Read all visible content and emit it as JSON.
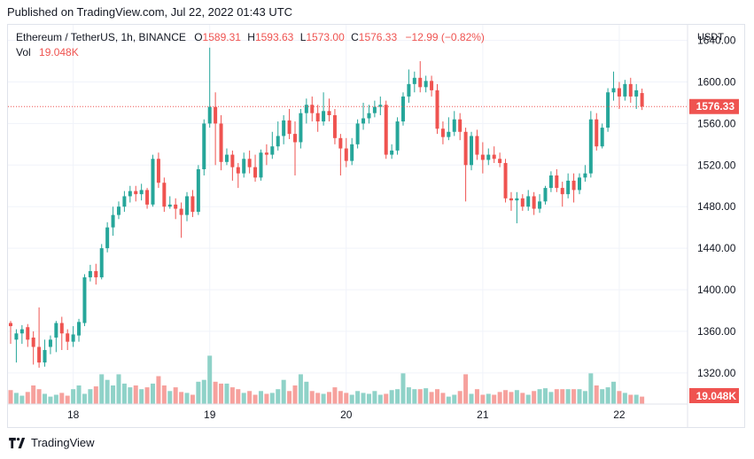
{
  "published": "Published on TradingView.com, Jul 22, 2022 01:43 UTC",
  "footer": {
    "brand": "TradingView",
    "icon": "tradingview-logo-icon"
  },
  "legend": {
    "symbol": "Ethereum / TetherUS, 1h, BINANCE",
    "o_label": "O",
    "o_value": "1589.31",
    "h_label": "H",
    "h_value": "1593.63",
    "l_label": "L",
    "l_value": "1573.00",
    "c_label": "C",
    "c_value": "1576.33",
    "change": "−12.99 (−0.82%)",
    "vol_label": "Vol",
    "vol_value": "19.048K"
  },
  "colors": {
    "up": "#26a69a",
    "down": "#ef5350",
    "vol_up": "#8fd2c8",
    "vol_down": "#f6a19d",
    "grid": "#f0f3fa",
    "axis_text": "#131722"
  },
  "chart_data": {
    "type": "candlestick",
    "currency": "USDT",
    "ylim": [
      1290,
      1655
    ],
    "y_ticks": [
      "1640.00",
      "1600.00",
      "1560.00",
      "1520.00",
      "1480.00",
      "1440.00",
      "1400.00",
      "1360.00",
      "1320.00"
    ],
    "x_ticks": [
      {
        "label": "18",
        "index": 11
      },
      {
        "label": "19",
        "index": 35
      },
      {
        "label": "20",
        "index": 59
      },
      {
        "label": "21",
        "index": 83
      },
      {
        "label": "22",
        "index": 107
      }
    ],
    "last_price": "1576.33",
    "last_volume": "19.048K",
    "grid": true,
    "candles": [
      [
        1368,
        1365,
        1370,
        1348,
        1.5
      ],
      [
        1352,
        1358,
        1362,
        1330,
        1.2
      ],
      [
        1358,
        1362,
        1366,
        1348,
        0.9
      ],
      [
        1364,
        1352,
        1367,
        1345,
        1.3
      ],
      [
        1354,
        1345,
        1360,
        1328,
        2.0
      ],
      [
        1345,
        1330,
        1383,
        1325,
        1.6
      ],
      [
        1330,
        1342,
        1352,
        1326,
        1.1
      ],
      [
        1345,
        1352,
        1356,
        1338,
        0.8
      ],
      [
        1354,
        1368,
        1370,
        1340,
        1.0
      ],
      [
        1368,
        1358,
        1374,
        1342,
        1.2
      ],
      [
        1358,
        1350,
        1362,
        1342,
        0.9
      ],
      [
        1350,
        1357,
        1365,
        1345,
        1.6
      ],
      [
        1356,
        1369,
        1372,
        1350,
        2.0
      ],
      [
        1368,
        1412,
        1415,
        1365,
        1.1
      ],
      [
        1412,
        1418,
        1424,
        1408,
        1.6
      ],
      [
        1418,
        1412,
        1425,
        1405,
        1.9
      ],
      [
        1412,
        1440,
        1444,
        1410,
        3.2
      ],
      [
        1440,
        1460,
        1465,
        1436,
        2.6
      ],
      [
        1460,
        1472,
        1480,
        1452,
        2.0
      ],
      [
        1472,
        1480,
        1485,
        1468,
        3.2
      ],
      [
        1480,
        1490,
        1495,
        1475,
        2.2
      ],
      [
        1490,
        1495,
        1500,
        1484,
        1.8
      ],
      [
        1495,
        1492,
        1500,
        1485,
        2.0
      ],
      [
        1492,
        1496,
        1502,
        1486,
        1.6
      ],
      [
        1496,
        1482,
        1498,
        1478,
        1.8
      ],
      [
        1482,
        1526,
        1530,
        1480,
        2.2
      ],
      [
        1526,
        1503,
        1532,
        1498,
        3.0
      ],
      [
        1503,
        1480,
        1508,
        1475,
        2.0
      ],
      [
        1480,
        1482,
        1490,
        1478,
        1.4
      ],
      [
        1482,
        1478,
        1488,
        1468,
        1.8
      ],
      [
        1478,
        1472,
        1484,
        1450,
        1.3
      ],
      [
        1472,
        1490,
        1494,
        1466,
        1.2
      ],
      [
        1490,
        1475,
        1496,
        1470,
        1.0
      ],
      [
        1475,
        1516,
        1520,
        1472,
        2.4
      ],
      [
        1516,
        1560,
        1564,
        1510,
        2.6
      ],
      [
        1560,
        1576,
        1633,
        1556,
        5.2
      ],
      [
        1576,
        1560,
        1590,
        1520,
        2.4
      ],
      [
        1560,
        1523,
        1568,
        1515,
        2.2
      ],
      [
        1523,
        1530,
        1536,
        1520,
        2.2
      ],
      [
        1530,
        1518,
        1534,
        1505,
        1.8
      ],
      [
        1518,
        1512,
        1522,
        1498,
        1.6
      ],
      [
        1512,
        1526,
        1532,
        1508,
        1.2
      ],
      [
        1526,
        1518,
        1534,
        1512,
        1.4
      ],
      [
        1518,
        1508,
        1530,
        1504,
        1.0
      ],
      [
        1508,
        1532,
        1535,
        1505,
        1.4
      ],
      [
        1532,
        1530,
        1540,
        1520,
        1.1
      ],
      [
        1530,
        1538,
        1552,
        1526,
        1.2
      ],
      [
        1538,
        1548,
        1562,
        1534,
        1.6
      ],
      [
        1548,
        1563,
        1568,
        1540,
        2.6
      ],
      [
        1563,
        1550,
        1574,
        1545,
        1.4
      ],
      [
        1550,
        1542,
        1562,
        1510,
        2.0
      ],
      [
        1542,
        1570,
        1574,
        1536,
        3.2
      ],
      [
        1570,
        1578,
        1584,
        1560,
        2.4
      ],
      [
        1578,
        1570,
        1586,
        1562,
        1.4
      ],
      [
        1570,
        1562,
        1578,
        1552,
        1.2
      ],
      [
        1562,
        1572,
        1590,
        1558,
        1.1
      ],
      [
        1572,
        1568,
        1584,
        1562,
        1.3
      ],
      [
        1568,
        1546,
        1574,
        1540,
        1.8
      ],
      [
        1546,
        1536,
        1550,
        1510,
        1.4
      ],
      [
        1536,
        1524,
        1546,
        1518,
        1.2
      ],
      [
        1524,
        1540,
        1546,
        1520,
        1.0
      ],
      [
        1540,
        1560,
        1564,
        1536,
        1.4
      ],
      [
        1560,
        1565,
        1580,
        1554,
        1.2
      ],
      [
        1565,
        1570,
        1578,
        1560,
        1.1
      ],
      [
        1570,
        1576,
        1582,
        1566,
        1.4
      ],
      [
        1576,
        1578,
        1586,
        1568,
        1.0
      ],
      [
        1578,
        1530,
        1582,
        1526,
        1.1
      ],
      [
        1530,
        1534,
        1540,
        1526,
        1.5
      ],
      [
        1534,
        1562,
        1566,
        1530,
        1.6
      ],
      [
        1562,
        1586,
        1590,
        1558,
        3.3
      ],
      [
        1586,
        1598,
        1612,
        1580,
        1.8
      ],
      [
        1598,
        1604,
        1610,
        1590,
        1.6
      ],
      [
        1604,
        1595,
        1620,
        1590,
        1.6
      ],
      [
        1595,
        1601,
        1606,
        1590,
        1.7
      ],
      [
        1601,
        1592,
        1606,
        1586,
        1.3
      ],
      [
        1592,
        1555,
        1598,
        1550,
        1.6
      ],
      [
        1555,
        1547,
        1562,
        1540,
        1.2
      ],
      [
        1547,
        1552,
        1566,
        1544,
        0.8
      ],
      [
        1552,
        1564,
        1572,
        1548,
        1.0
      ],
      [
        1564,
        1552,
        1570,
        1544,
        1.4
      ],
      [
        1552,
        1520,
        1556,
        1485,
        3.2
      ],
      [
        1520,
        1548,
        1552,
        1515,
        1.1
      ],
      [
        1548,
        1530,
        1554,
        1525,
        1.6
      ],
      [
        1530,
        1525,
        1542,
        1512,
        1.0
      ],
      [
        1525,
        1530,
        1536,
        1520,
        1.1
      ],
      [
        1530,
        1526,
        1538,
        1522,
        1.0
      ],
      [
        1526,
        1522,
        1532,
        1518,
        1.3
      ],
      [
        1522,
        1488,
        1526,
        1484,
        1.5
      ],
      [
        1488,
        1486,
        1494,
        1476,
        1.3
      ],
      [
        1486,
        1488,
        1494,
        1464,
        1.5
      ],
      [
        1488,
        1480,
        1492,
        1476,
        1.2
      ],
      [
        1480,
        1490,
        1496,
        1476,
        1.0
      ],
      [
        1490,
        1478,
        1494,
        1472,
        1.4
      ],
      [
        1478,
        1485,
        1492,
        1474,
        1.6
      ],
      [
        1485,
        1498,
        1500,
        1482,
        1.7
      ],
      [
        1498,
        1510,
        1514,
        1494,
        1.3
      ],
      [
        1510,
        1498,
        1516,
        1494,
        1.6
      ],
      [
        1498,
        1492,
        1504,
        1480,
        1.6
      ],
      [
        1492,
        1505,
        1512,
        1488,
        1.6
      ],
      [
        1505,
        1496,
        1512,
        1484,
        1.6
      ],
      [
        1496,
        1508,
        1512,
        1492,
        1.6
      ],
      [
        1508,
        1512,
        1520,
        1504,
        1.4
      ],
      [
        1512,
        1564,
        1572,
        1508,
        3.3
      ],
      [
        1564,
        1538,
        1570,
        1534,
        2.0
      ],
      [
        1538,
        1556,
        1560,
        1536,
        1.6
      ],
      [
        1556,
        1590,
        1594,
        1552,
        1.8
      ],
      [
        1590,
        1594,
        1610,
        1582,
        2.4
      ],
      [
        1594,
        1586,
        1600,
        1574,
        1.4
      ],
      [
        1586,
        1598,
        1602,
        1582,
        1.2
      ],
      [
        1598,
        1586,
        1604,
        1580,
        1.0
      ],
      [
        1586,
        1592,
        1598,
        1574,
        1.0
      ],
      [
        1589.31,
        1576.33,
        1593.63,
        1573.0,
        0.8
      ]
    ]
  }
}
